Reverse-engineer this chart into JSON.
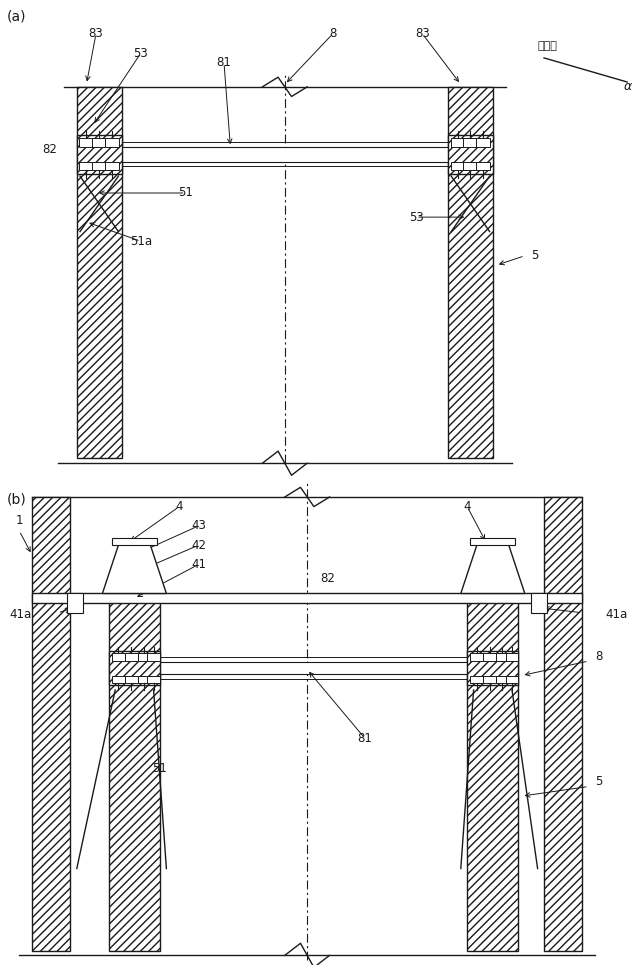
{
  "bg_color": "#ffffff",
  "line_color": "#1a1a1a",
  "fig_width": 6.4,
  "fig_height": 9.65,
  "label_a": "(a)",
  "label_b": "(b)",
  "suimen_text": "水平面",
  "alpha_text": "α"
}
